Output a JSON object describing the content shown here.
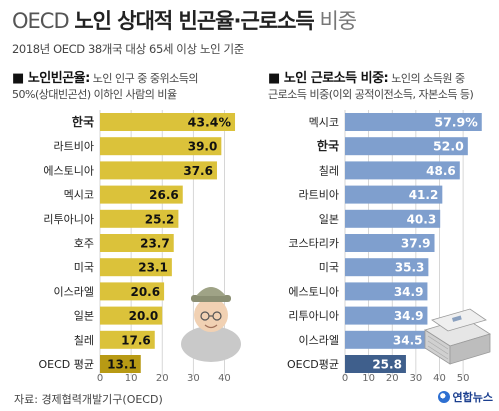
{
  "header": {
    "title_prefix": "OECD ",
    "title_main": "노인 상대적 빈곤율·근로소득",
    "title_suffix": " 비중",
    "subtitle": "2018년 OECD 38개국 대상 65세 이상 노인 기준"
  },
  "left_panel": {
    "heading": "노인빈곤율:",
    "note_line1": " 노인 인구 중 중위소득의",
    "note_line2": "50%(상대빈곤선) 이하인 사람의 비율"
  },
  "right_panel": {
    "heading": "노인 근로소득 비중:",
    "note_line1": " 노인의 소득원 중",
    "note_line2": "근로소득 비중(이외 공적이전소득, 자본소득 등)"
  },
  "footer": {
    "source": "자료: 경제협력개발기구(OECD)",
    "logo": "연합뉴스"
  },
  "colors": {
    "left_bar": "#dbc23a",
    "left_highlight": "#b89a14",
    "right_bar": "#7f9fce",
    "right_highlight": "#3f5f8c",
    "grid": "#cccccc"
  },
  "chart_data": [
    {
      "type": "bar",
      "orientation": "horizontal",
      "categories": [
        "한국",
        "라트비아",
        "에스토니아",
        "멕시코",
        "리투아니아",
        "호주",
        "미국",
        "이스라엘",
        "일본",
        "칠레",
        "OECD 평균"
      ],
      "values": [
        43.4,
        39.0,
        37.6,
        26.6,
        25.2,
        23.7,
        23.1,
        20.6,
        20.0,
        17.6,
        13.1
      ],
      "value_labels": [
        "43.4%",
        "39.0",
        "37.6",
        "26.6",
        "25.2",
        "23.7",
        "23.1",
        "20.6",
        "20.0",
        "17.6",
        "13.1"
      ],
      "bold_categories": [
        "한국"
      ],
      "highlight_category": "OECD 평균",
      "xlim": [
        0,
        45
      ],
      "xticks": [
        0,
        10,
        20,
        30,
        40
      ],
      "grid": true
    },
    {
      "type": "bar",
      "orientation": "horizontal",
      "categories": [
        "멕시코",
        "한국",
        "칠레",
        "라트비아",
        "일본",
        "코스타리카",
        "미국",
        "에스토니아",
        "리투아니아",
        "이스라엘",
        "OECD평균"
      ],
      "values": [
        57.9,
        52.0,
        48.6,
        41.2,
        40.3,
        37.9,
        35.3,
        34.9,
        34.9,
        34.5,
        25.8
      ],
      "value_labels": [
        "57.9%",
        "52.0",
        "48.6",
        "41.2",
        "40.3",
        "37.9",
        "35.3",
        "34.9",
        "34.9",
        "34.5",
        "25.8"
      ],
      "bold_categories": [
        "한국"
      ],
      "highlight_category": "OECD평균",
      "xlim": [
        0,
        58
      ],
      "xticks": [
        0,
        10,
        20,
        30,
        40,
        50
      ],
      "grid": true
    }
  ]
}
